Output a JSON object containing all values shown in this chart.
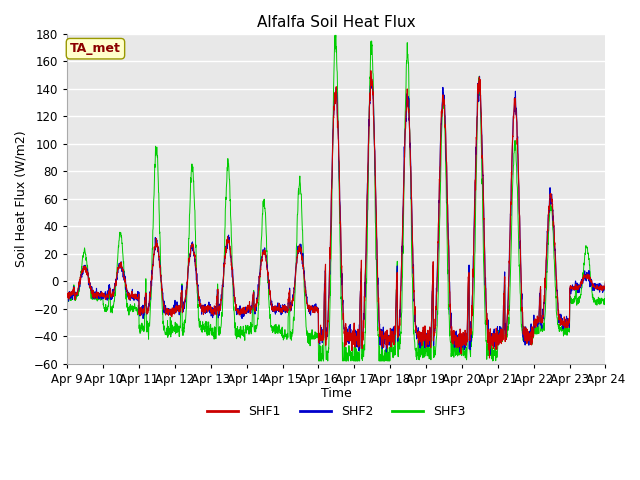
{
  "title": "Alfalfa Soil Heat Flux",
  "ylabel": "Soil Heat Flux (W/m2)",
  "xlabel": "Time",
  "annotation": "TA_met",
  "ylim": [
    -60,
    180
  ],
  "yticks": [
    -60,
    -40,
    -20,
    0,
    20,
    40,
    60,
    80,
    100,
    120,
    140,
    160,
    180
  ],
  "xtick_labels": [
    "Apr 9",
    "Apr 10",
    "Apr 11",
    "Apr 12",
    "Apr 13",
    "Apr 14",
    "Apr 15",
    "Apr 16",
    "Apr 17",
    "Apr 18",
    "Apr 19",
    "Apr 20",
    "Apr 21",
    "Apr 22",
    "Apr 23",
    "Apr 24"
  ],
  "legend_labels": [
    "SHF1",
    "SHF2",
    "SHF3"
  ],
  "colors": [
    "#cc0000",
    "#0000cc",
    "#00cc00"
  ],
  "fig_bg_color": "#ffffff",
  "plot_bg_color": "#e8e8e8",
  "grid_color": "#ffffff",
  "annotation_bg": "#ffffcc",
  "annotation_edge": "#999900",
  "annotation_color": "#8b0000",
  "spine_color": "#aaaaaa"
}
